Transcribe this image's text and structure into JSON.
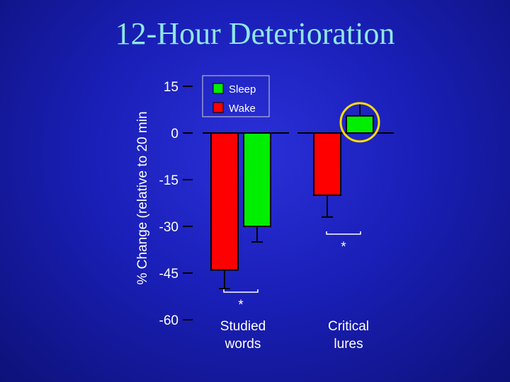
{
  "chart_data": {
    "type": "bar",
    "title": "12-Hour Deterioration",
    "ylabel": "% Change (relative to 20 min",
    "ylim": [
      -60,
      15
    ],
    "yticks": [
      15,
      0,
      -15,
      -30,
      -45,
      -60
    ],
    "categories": [
      {
        "label_lines": [
          "Studied",
          "words"
        ]
      },
      {
        "label_lines": [
          "Critical",
          "lures"
        ]
      }
    ],
    "series": [
      {
        "name": "Wake",
        "color": "#ff0000",
        "values": [
          -44,
          -20
        ],
        "errors": [
          6,
          7
        ]
      },
      {
        "name": "Sleep",
        "color": "#00ee00",
        "values": [
          -30,
          5.5
        ],
        "errors": [
          5,
          4
        ]
      }
    ],
    "legend_order": [
      "Sleep",
      "Wake"
    ],
    "significance": [
      "*",
      "*"
    ],
    "highlight": {
      "category": 1,
      "series": "Sleep",
      "color": "#ffdd00"
    },
    "legend": "top"
  }
}
